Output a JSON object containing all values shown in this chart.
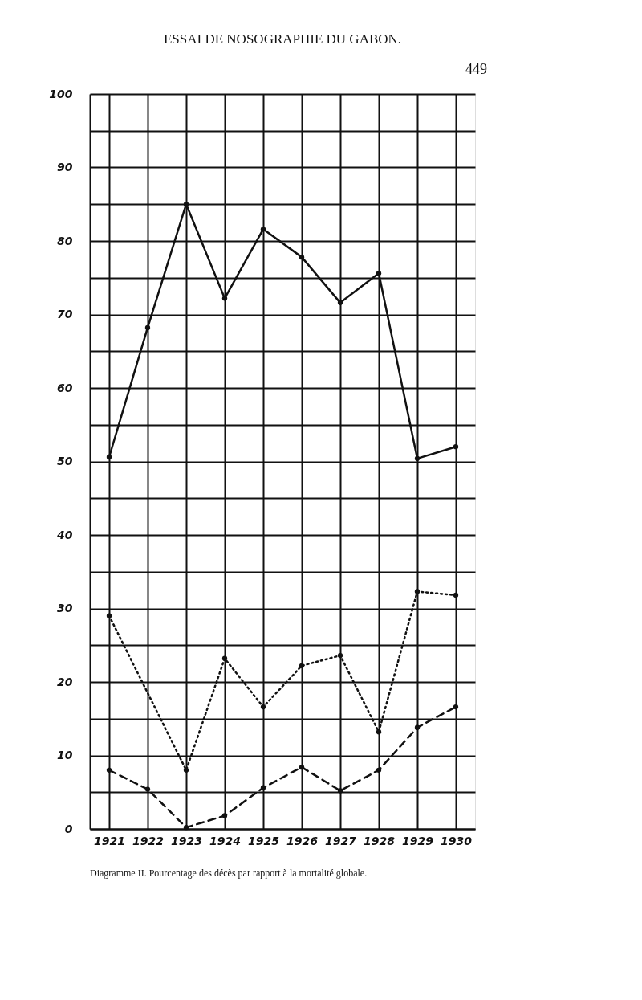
{
  "chart_data": {
    "type": "line",
    "title": "ESSAI DE NOSOGRAPHIE DU GABON.",
    "annotations": [
      "449",
      "Diagramme II. Pourcentage des décès par rapport à la mortalité globale."
    ],
    "categories": [
      "1921",
      "1922",
      "1923",
      "1924",
      "1925",
      "1926",
      "1927",
      "1928",
      "1929",
      "1930"
    ],
    "series": [
      {
        "color": "#111111",
        "line_style": "solid",
        "values": [
          50.6,
          68.2,
          85.0,
          72.2,
          81.6,
          77.8,
          71.6,
          75.6,
          50.4,
          52.0
        ]
      },
      {
        "color": "#111111",
        "line_style": "dotted",
        "values": [
          29.0,
          null,
          8.0,
          23.2,
          16.6,
          22.2,
          23.6,
          13.2,
          32.3,
          31.8
        ]
      },
      {
        "color": "#111111",
        "line_style": "dashed",
        "values": [
          8.0,
          5.4,
          0.2,
          1.8,
          5.6,
          8.4,
          5.2,
          8.0,
          13.8,
          16.6
        ]
      }
    ],
    "ylim": [
      0,
      100
    ],
    "yticks": [
      0,
      {
        "value": 5,
        "label": null
      },
      10,
      {
        "value": 15,
        "label": null
      },
      20,
      {
        "value": 25,
        "label": null
      },
      30,
      {
        "value": 35,
        "label": null
      },
      40,
      {
        "value": 45,
        "label": null
      },
      50,
      {
        "value": 55,
        "label": null
      },
      60,
      {
        "value": 65,
        "label": null
      },
      70,
      {
        "value": 75,
        "label": null
      },
      80,
      {
        "value": 85,
        "label": null
      },
      90,
      {
        "value": 95,
        "label": null
      },
      100
    ],
    "grid": true,
    "marker": "circle"
  }
}
